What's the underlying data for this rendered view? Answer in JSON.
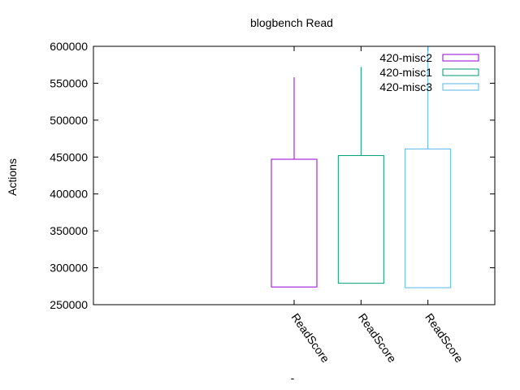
{
  "chart_data": {
    "type": "candlestick",
    "title": "blogbench Read",
    "xlabel": "-",
    "ylabel": "Actions",
    "ylim": [
      250000,
      600000
    ],
    "yticks": [
      250000,
      300000,
      350000,
      400000,
      450000,
      500000,
      550000,
      600000
    ],
    "xlim": [
      0,
      6
    ],
    "legend_position": "top-right",
    "series": [
      {
        "name": "420-misc2",
        "x_label": "ReadScore",
        "x": 3,
        "color": "#9400d3",
        "low": 274000,
        "box_low": 274000,
        "box_high": 447000,
        "high": 558000
      },
      {
        "name": "420-misc1",
        "x_label": "ReadScore",
        "x": 4,
        "color": "#009e73",
        "low": 279000,
        "box_low": 279000,
        "box_high": 452000,
        "high": 572000
      },
      {
        "name": "420-misc3",
        "x_label": "ReadScore",
        "x": 5,
        "color": "#56b4e9",
        "low": 273000,
        "box_low": 273000,
        "box_high": 461000,
        "high": 600000
      }
    ]
  }
}
